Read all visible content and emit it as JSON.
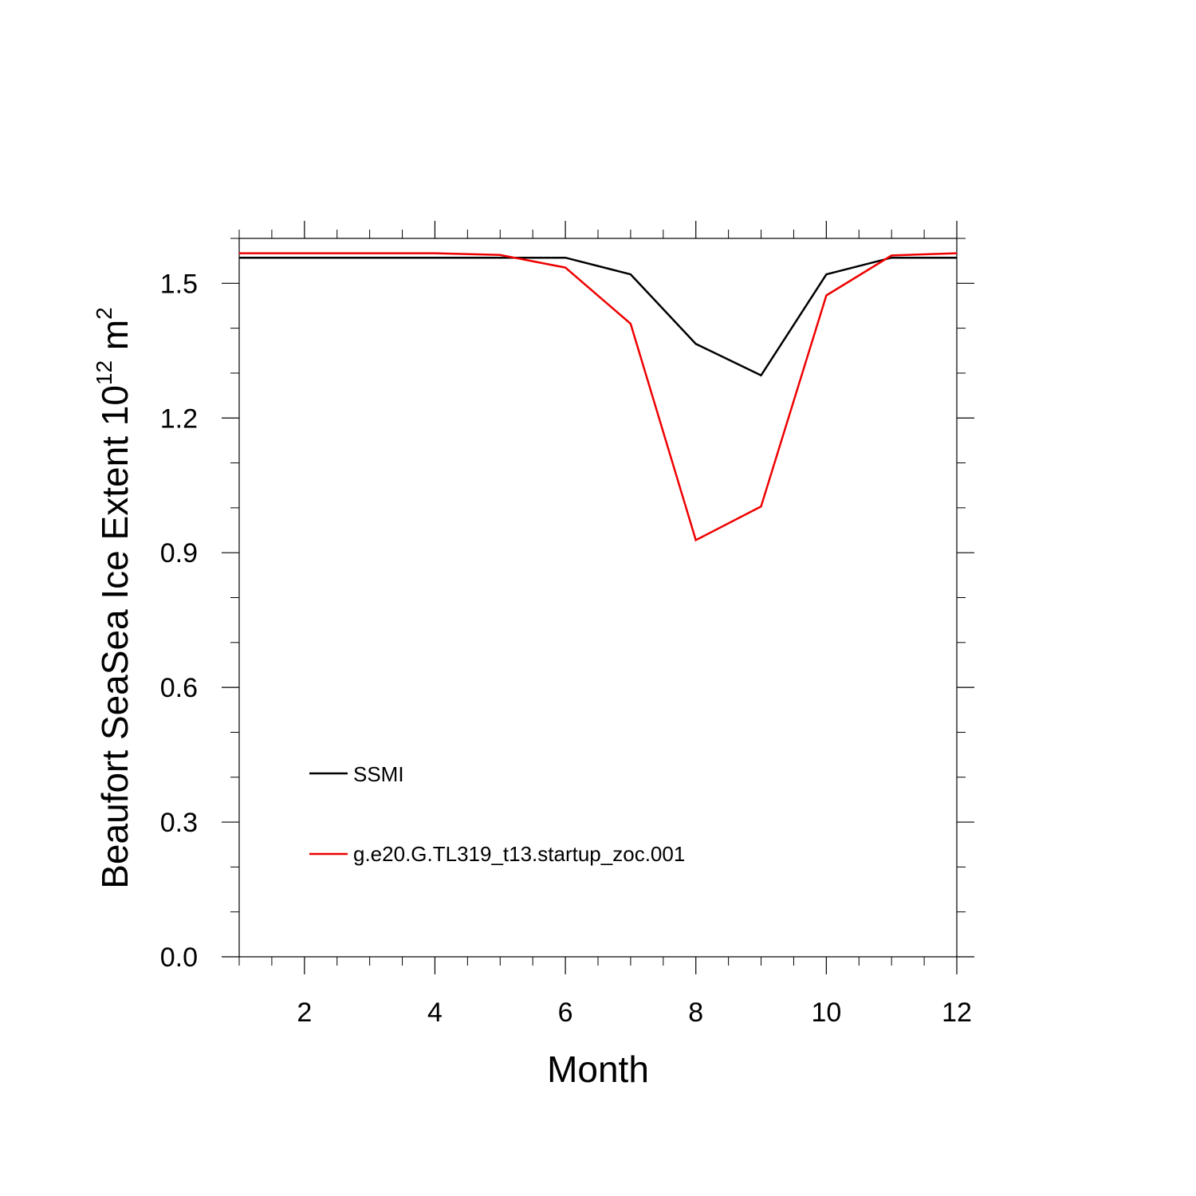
{
  "chart_data": {
    "type": "line",
    "xlabel": "Month",
    "ylabel": {
      "prefix": "Beaufort SeaSea Ice Extent 10",
      "superscript": "12",
      "unit": " m",
      "unit_superscript": "2"
    },
    "xlim": [
      1,
      12
    ],
    "ylim": [
      0,
      1.6
    ],
    "xticks": [
      2,
      4,
      6,
      8,
      10,
      12
    ],
    "yticks": [
      0.0,
      0.3,
      0.6,
      0.9,
      1.2,
      1.5
    ],
    "ytick_labels": [
      "0.0",
      "0.3",
      "0.6",
      "0.9",
      "1.2",
      "1.5"
    ],
    "x": [
      1,
      2,
      3,
      4,
      5,
      6,
      7,
      8,
      9,
      10,
      11,
      12
    ],
    "grid": false,
    "legend_position": "lower-left",
    "series": [
      {
        "name": "SSMI",
        "color": "#000000",
        "values": [
          1.557,
          1.557,
          1.557,
          1.557,
          1.557,
          1.557,
          1.52,
          1.365,
          1.295,
          1.52,
          1.557,
          1.557
        ]
      },
      {
        "name": "g.e20.G.TL319_t13.startup_zoc.001",
        "color": "#ee0000",
        "values": [
          1.567,
          1.567,
          1.567,
          1.567,
          1.563,
          1.535,
          1.41,
          0.928,
          1.003,
          1.473,
          1.562,
          1.567
        ]
      }
    ]
  }
}
